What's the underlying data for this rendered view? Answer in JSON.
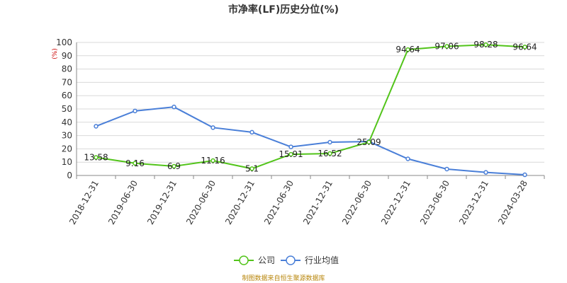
{
  "chart_data": {
    "type": "line",
    "title": "市净率(LF)历史分位(%)",
    "unit_label": "(%)",
    "categories": [
      "2018-12-31",
      "2019-06-30",
      "2019-12-31",
      "2020-06-30",
      "2020-12-31",
      "2021-06-30",
      "2021-12-31",
      "2022-06-30",
      "2022-12-31",
      "2023-06-30",
      "2023-12-31",
      "2024-03-28"
    ],
    "ylim": [
      0,
      100
    ],
    "yticks": [
      0,
      10,
      20,
      30,
      40,
      50,
      60,
      70,
      80,
      90,
      100
    ],
    "grid": true,
    "legend_position": "bottom",
    "series": [
      {
        "name": "公司",
        "color": "#52c41a",
        "values": [
          13.58,
          9.16,
          6.9,
          11.16,
          5.1,
          15.91,
          16.52,
          25.09,
          94.64,
          97.06,
          98.28,
          96.64
        ],
        "labels": [
          "13.58",
          "9.16",
          "6.9",
          "11.16",
          "5.1",
          "15.91",
          "16.52",
          "25.09",
          "94.64",
          "97.06",
          "98.28",
          "96.64"
        ]
      },
      {
        "name": "行业均值",
        "color": "#4a7fd8",
        "values": [
          37,
          48.5,
          51.5,
          36,
          32.5,
          21.5,
          25,
          25.5,
          12.5,
          4.8,
          2.3,
          0.5
        ]
      }
    ]
  },
  "footer": {
    "source": "制图数据来自恒生聚源数据库"
  }
}
